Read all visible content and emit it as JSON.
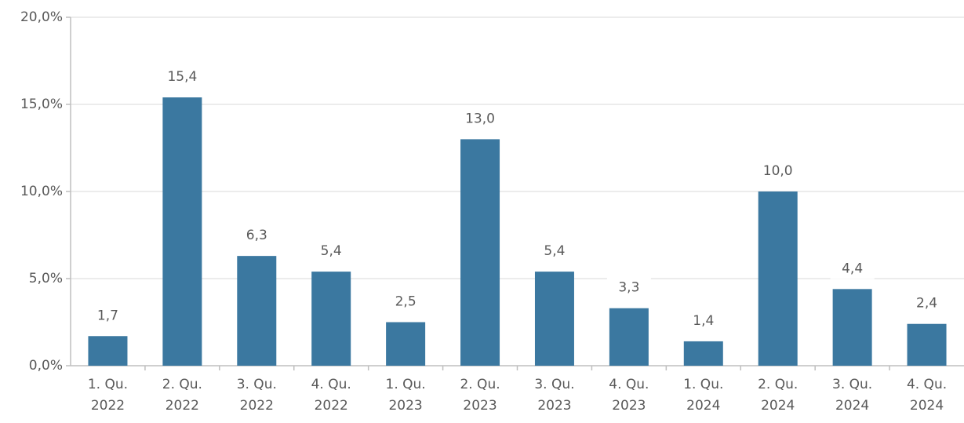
{
  "chart_data": {
    "type": "bar",
    "categories": [
      [
        "1. Qu.",
        "2022"
      ],
      [
        "2. Qu.",
        "2022"
      ],
      [
        "3. Qu.",
        "2022"
      ],
      [
        "4. Qu.",
        "2022"
      ],
      [
        "1. Qu.",
        "2023"
      ],
      [
        "2. Qu.",
        "2023"
      ],
      [
        "3. Qu.",
        "2023"
      ],
      [
        "4. Qu.",
        "2023"
      ],
      [
        "1. Qu.",
        "2024"
      ],
      [
        "2. Qu.",
        "2024"
      ],
      [
        "3. Qu.",
        "2024"
      ],
      [
        "4. Qu.",
        "2024"
      ]
    ],
    "values": [
      1.7,
      15.4,
      6.3,
      5.4,
      2.5,
      13.0,
      5.4,
      3.3,
      1.4,
      10.0,
      4.4,
      2.4
    ],
    "value_labels": [
      "1,7",
      "15,4",
      "6,3",
      "5,4",
      "2,5",
      "13,0",
      "5,4",
      "3,3",
      "1,4",
      "10,0",
      "4,4",
      "2,4"
    ],
    "color": "#3b78a0",
    "ylim": [
      0,
      20
    ],
    "yticks": [
      {
        "value": 0,
        "label": "0,0%"
      },
      {
        "value": 5,
        "label": "5,0%"
      },
      {
        "value": 10,
        "label": "10,0%"
      },
      {
        "value": 15,
        "label": "15,0%"
      },
      {
        "value": 20,
        "label": "20,0%"
      }
    ],
    "grid": true
  }
}
